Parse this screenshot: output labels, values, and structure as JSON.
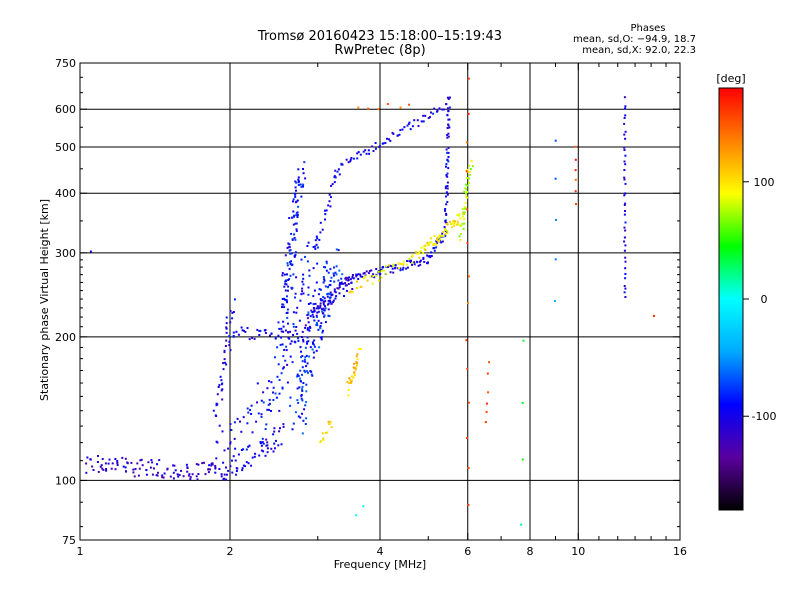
{
  "chart_data": {
    "type": "scatter",
    "title": "Tromsø 20160423 15:18:00–15:19:43",
    "subtitle": "RwPretec (8p)",
    "xlabel": "Frequency [MHz]",
    "ylabel": "Stationary phase Virtual Height [km]",
    "x_scale": "log",
    "y_scale": "log",
    "xlim": [
      1,
      16
    ],
    "ylim": [
      75,
      750
    ],
    "x_ticks": [
      1,
      2,
      4,
      6,
      8,
      10,
      16
    ],
    "y_ticks": [
      75,
      100,
      200,
      300,
      400,
      500,
      600,
      750
    ],
    "grid": true,
    "info": {
      "heading": "Phases",
      "line_o": "mean, sd,O: −94.9, 18.7",
      "line_x": "mean, sd,X:  92.0, 22.3"
    },
    "colorbar": {
      "label": "[deg]",
      "range": [
        -180,
        180
      ],
      "ticks": [
        100,
        0,
        -100
      ],
      "colors": [
        "#000000",
        "#5a00a0",
        "#0000ff",
        "#00aaff",
        "#00ffff",
        "#00ff00",
        "#ffff00",
        "#ff8000",
        "#ff0000"
      ]
    },
    "series": [
      {
        "segments": [
          {
            "x0": 1.03,
            "x1": 1.95,
            "y0": 108,
            "y1": 104,
            "n": 110,
            "phase": -112,
            "spread": 0.045
          },
          {
            "x0": 1.95,
            "x1": 2.55,
            "y0": 104,
            "y1": 125,
            "n": 55,
            "phase": -102,
            "spread": 0.05
          },
          {
            "x0": 1.85,
            "x1": 2.35,
            "y0": 112,
            "y1": 150,
            "n": 35,
            "phase": -100,
            "spread": 0.08
          },
          {
            "x0": 1.88,
            "x1": 2.02,
            "y0": 135,
            "y1": 232,
            "n": 40,
            "phase": -100,
            "spread": 0.05
          },
          {
            "x0": 2.0,
            "x1": 2.9,
            "y0": 205,
            "y1": 200,
            "n": 45,
            "phase": -95,
            "spread": 0.03
          },
          {
            "x0": 2.35,
            "x1": 2.95,
            "y0": 125,
            "y1": 300,
            "n": 90,
            "phase": -92,
            "spread": 0.12
          },
          {
            "x0": 2.55,
            "x1": 2.78,
            "y0": 220,
            "y1": 440,
            "n": 110,
            "phase": -88,
            "spread": 0.07
          },
          {
            "x0": 2.7,
            "x1": 3.25,
            "y0": 135,
            "y1": 300,
            "n": 160,
            "phase": -80,
            "spread": 0.12
          },
          {
            "x0": 2.85,
            "x1": 3.5,
            "y0": 215,
            "y1": 262,
            "n": 70,
            "phase": -108,
            "spread": 0.04
          },
          {
            "x0": 3.4,
            "x1": 5.0,
            "y0": 262,
            "y1": 290,
            "n": 75,
            "phase": -102,
            "spread": 0.02
          },
          {
            "x0": 5.0,
            "x1": 5.42,
            "y0": 290,
            "y1": 330,
            "n": 28,
            "phase": -95,
            "spread": 0.025
          },
          {
            "x0": 5.42,
            "x1": 5.5,
            "y0": 330,
            "y1": 640,
            "n": 55,
            "phase": -95,
            "spread": 0.02
          },
          {
            "x0": 3.25,
            "x1": 5.45,
            "y0": 450,
            "y1": 610,
            "n": 65,
            "phase": -98,
            "spread": 0.02
          },
          {
            "x0": 2.95,
            "x1": 3.3,
            "y0": 300,
            "y1": 450,
            "n": 25,
            "phase": -98,
            "spread": 0.03
          },
          {
            "x0": 3.5,
            "x1": 4.8,
            "y0": 250,
            "y1": 300,
            "n": 40,
            "phase": 95,
            "spread": 0.03
          },
          {
            "x0": 4.8,
            "x1": 5.9,
            "y0": 300,
            "y1": 360,
            "n": 60,
            "phase": 100,
            "spread": 0.025
          },
          {
            "x0": 5.8,
            "x1": 6.1,
            "y0": 330,
            "y1": 470,
            "n": 35,
            "phase": 80,
            "spread": 0.035
          },
          {
            "x0": 3.45,
            "x1": 3.65,
            "y0": 155,
            "y1": 185,
            "n": 30,
            "phase": 110,
            "spread": 0.03
          },
          {
            "x0": 3.05,
            "x1": 3.2,
            "y0": 120,
            "y1": 135,
            "n": 12,
            "phase": 100,
            "spread": 0.03
          },
          {
            "x0": 12.4,
            "x1": 12.4,
            "y0": 240,
            "y1": 630,
            "n": 40,
            "phase": -100,
            "spread": 0.012
          },
          {
            "x0": 9.9,
            "x1": 9.9,
            "y0": 380,
            "y1": 500,
            "n": 6,
            "phase": 160,
            "spread": 0.01
          },
          {
            "x0": 9.0,
            "x1": 9.0,
            "y0": 240,
            "y1": 520,
            "n": 5,
            "phase": -60,
            "spread": 0.01
          },
          {
            "x0": 6.0,
            "x1": 6.0,
            "y0": 90,
            "y1": 700,
            "n": 14,
            "phase": 150,
            "spread": 0.02
          },
          {
            "x0": 6.5,
            "x1": 6.6,
            "y0": 130,
            "y1": 175,
            "n": 6,
            "phase": 150,
            "spread": 0.02
          },
          {
            "x0": 7.7,
            "x1": 7.8,
            "y0": 80,
            "y1": 200,
            "n": 4,
            "phase": 30,
            "spread": 0.02
          },
          {
            "x0": 3.6,
            "x1": 4.6,
            "y0": 600,
            "y1": 610,
            "n": 6,
            "phase": 150,
            "spread": 0.02
          },
          {
            "x0": 3.6,
            "x1": 3.7,
            "y0": 85,
            "y1": 90,
            "n": 2,
            "phase": 0,
            "spread": 0.02
          },
          {
            "x0": 14.2,
            "x1": 14.2,
            "y0": 220,
            "y1": 225,
            "n": 1,
            "phase": 150,
            "spread": 0.01
          },
          {
            "x0": 1.05,
            "x1": 1.05,
            "y0": 300,
            "y1": 305,
            "n": 1,
            "phase": -100,
            "spread": 0.01
          }
        ]
      }
    ]
  }
}
